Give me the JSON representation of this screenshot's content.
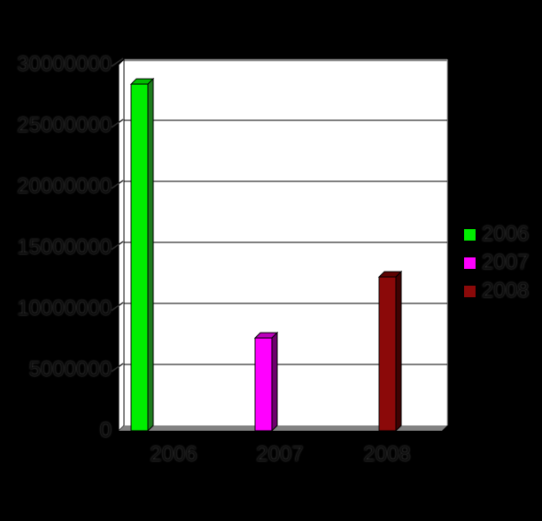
{
  "chart_data": {
    "type": "bar",
    "style": "3d-column",
    "title": "",
    "xlabel": "",
    "ylabel": "",
    "categories": [
      "2006",
      "2007",
      "2008"
    ],
    "series": [
      {
        "name": "2006",
        "value": 28400000,
        "color": "#00EE00",
        "top_color": "#00BD00",
        "side_color": "#1E7D1E"
      },
      {
        "name": "2007",
        "value": 7600000,
        "color": "#FF00FF",
        "top_color": "#BC00BC",
        "side_color": "#6E006E"
      },
      {
        "name": "2008",
        "value": 12600000,
        "color": "#8B0909",
        "top_color": "#5E0303",
        "side_color": "#3F0202"
      }
    ],
    "ylim": [
      0,
      30000000
    ],
    "ytick_step": 5000000,
    "ytick_labels": [
      "0",
      "5000000",
      "10000000",
      "15000000",
      "20000000",
      "25000000",
      "30000000"
    ],
    "grid": true,
    "legend": {
      "position": "right",
      "entries": [
        "2006",
        "2007",
        "2008"
      ]
    },
    "colors": {
      "background": "#000000",
      "plot_background": "#FFFFFF",
      "floor": "#828282",
      "wall_top_edge": "#8A8A8A",
      "gridline": "#000000",
      "label_text": "#303030"
    }
  }
}
